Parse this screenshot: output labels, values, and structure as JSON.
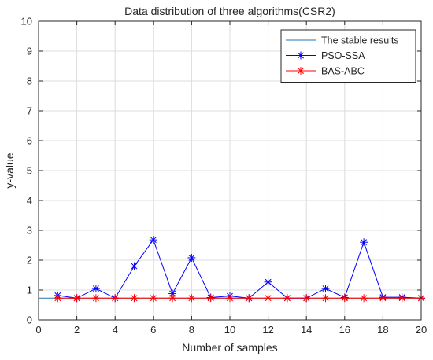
{
  "chart_data": {
    "type": "line",
    "title": "Data distribution of three algorithms(CSR2)",
    "xlabel": "Number of samples",
    "ylabel": "y-value",
    "xlim": [
      0,
      20
    ],
    "ylim": [
      0,
      10
    ],
    "xticks": [
      0,
      2,
      4,
      6,
      8,
      10,
      12,
      14,
      16,
      18,
      20
    ],
    "yticks": [
      0,
      1,
      2,
      3,
      4,
      5,
      6,
      7,
      8,
      9,
      10
    ],
    "grid": true,
    "legend_position": "top-right",
    "series": [
      {
        "name": "The stable results",
        "color": "#1f77b4",
        "marker": "none",
        "x": [
          0,
          20
        ],
        "y": [
          0.73,
          0.73
        ]
      },
      {
        "name": "PSO-SSA",
        "color": "#0000ff",
        "marker": "asterisk",
        "x": [
          1,
          2,
          3,
          4,
          5,
          6,
          7,
          8,
          9,
          10,
          11,
          12,
          13,
          14,
          15,
          16,
          17,
          18,
          19,
          20
        ],
        "y": [
          0.82,
          0.73,
          1.05,
          0.73,
          1.8,
          2.68,
          0.88,
          2.08,
          0.75,
          0.8,
          0.73,
          1.27,
          0.73,
          0.73,
          1.05,
          0.75,
          2.6,
          0.76,
          0.76,
          0.73
        ]
      },
      {
        "name": "BAS-ABC",
        "color": "#ff0000",
        "marker": "asterisk",
        "x": [
          1,
          2,
          3,
          4,
          5,
          6,
          7,
          8,
          9,
          10,
          11,
          12,
          13,
          14,
          15,
          16,
          17,
          18,
          19,
          20
        ],
        "y": [
          0.73,
          0.73,
          0.73,
          0.73,
          0.73,
          0.73,
          0.73,
          0.73,
          0.73,
          0.73,
          0.73,
          0.73,
          0.73,
          0.73,
          0.73,
          0.73,
          0.73,
          0.73,
          0.73,
          0.73
        ]
      }
    ]
  }
}
